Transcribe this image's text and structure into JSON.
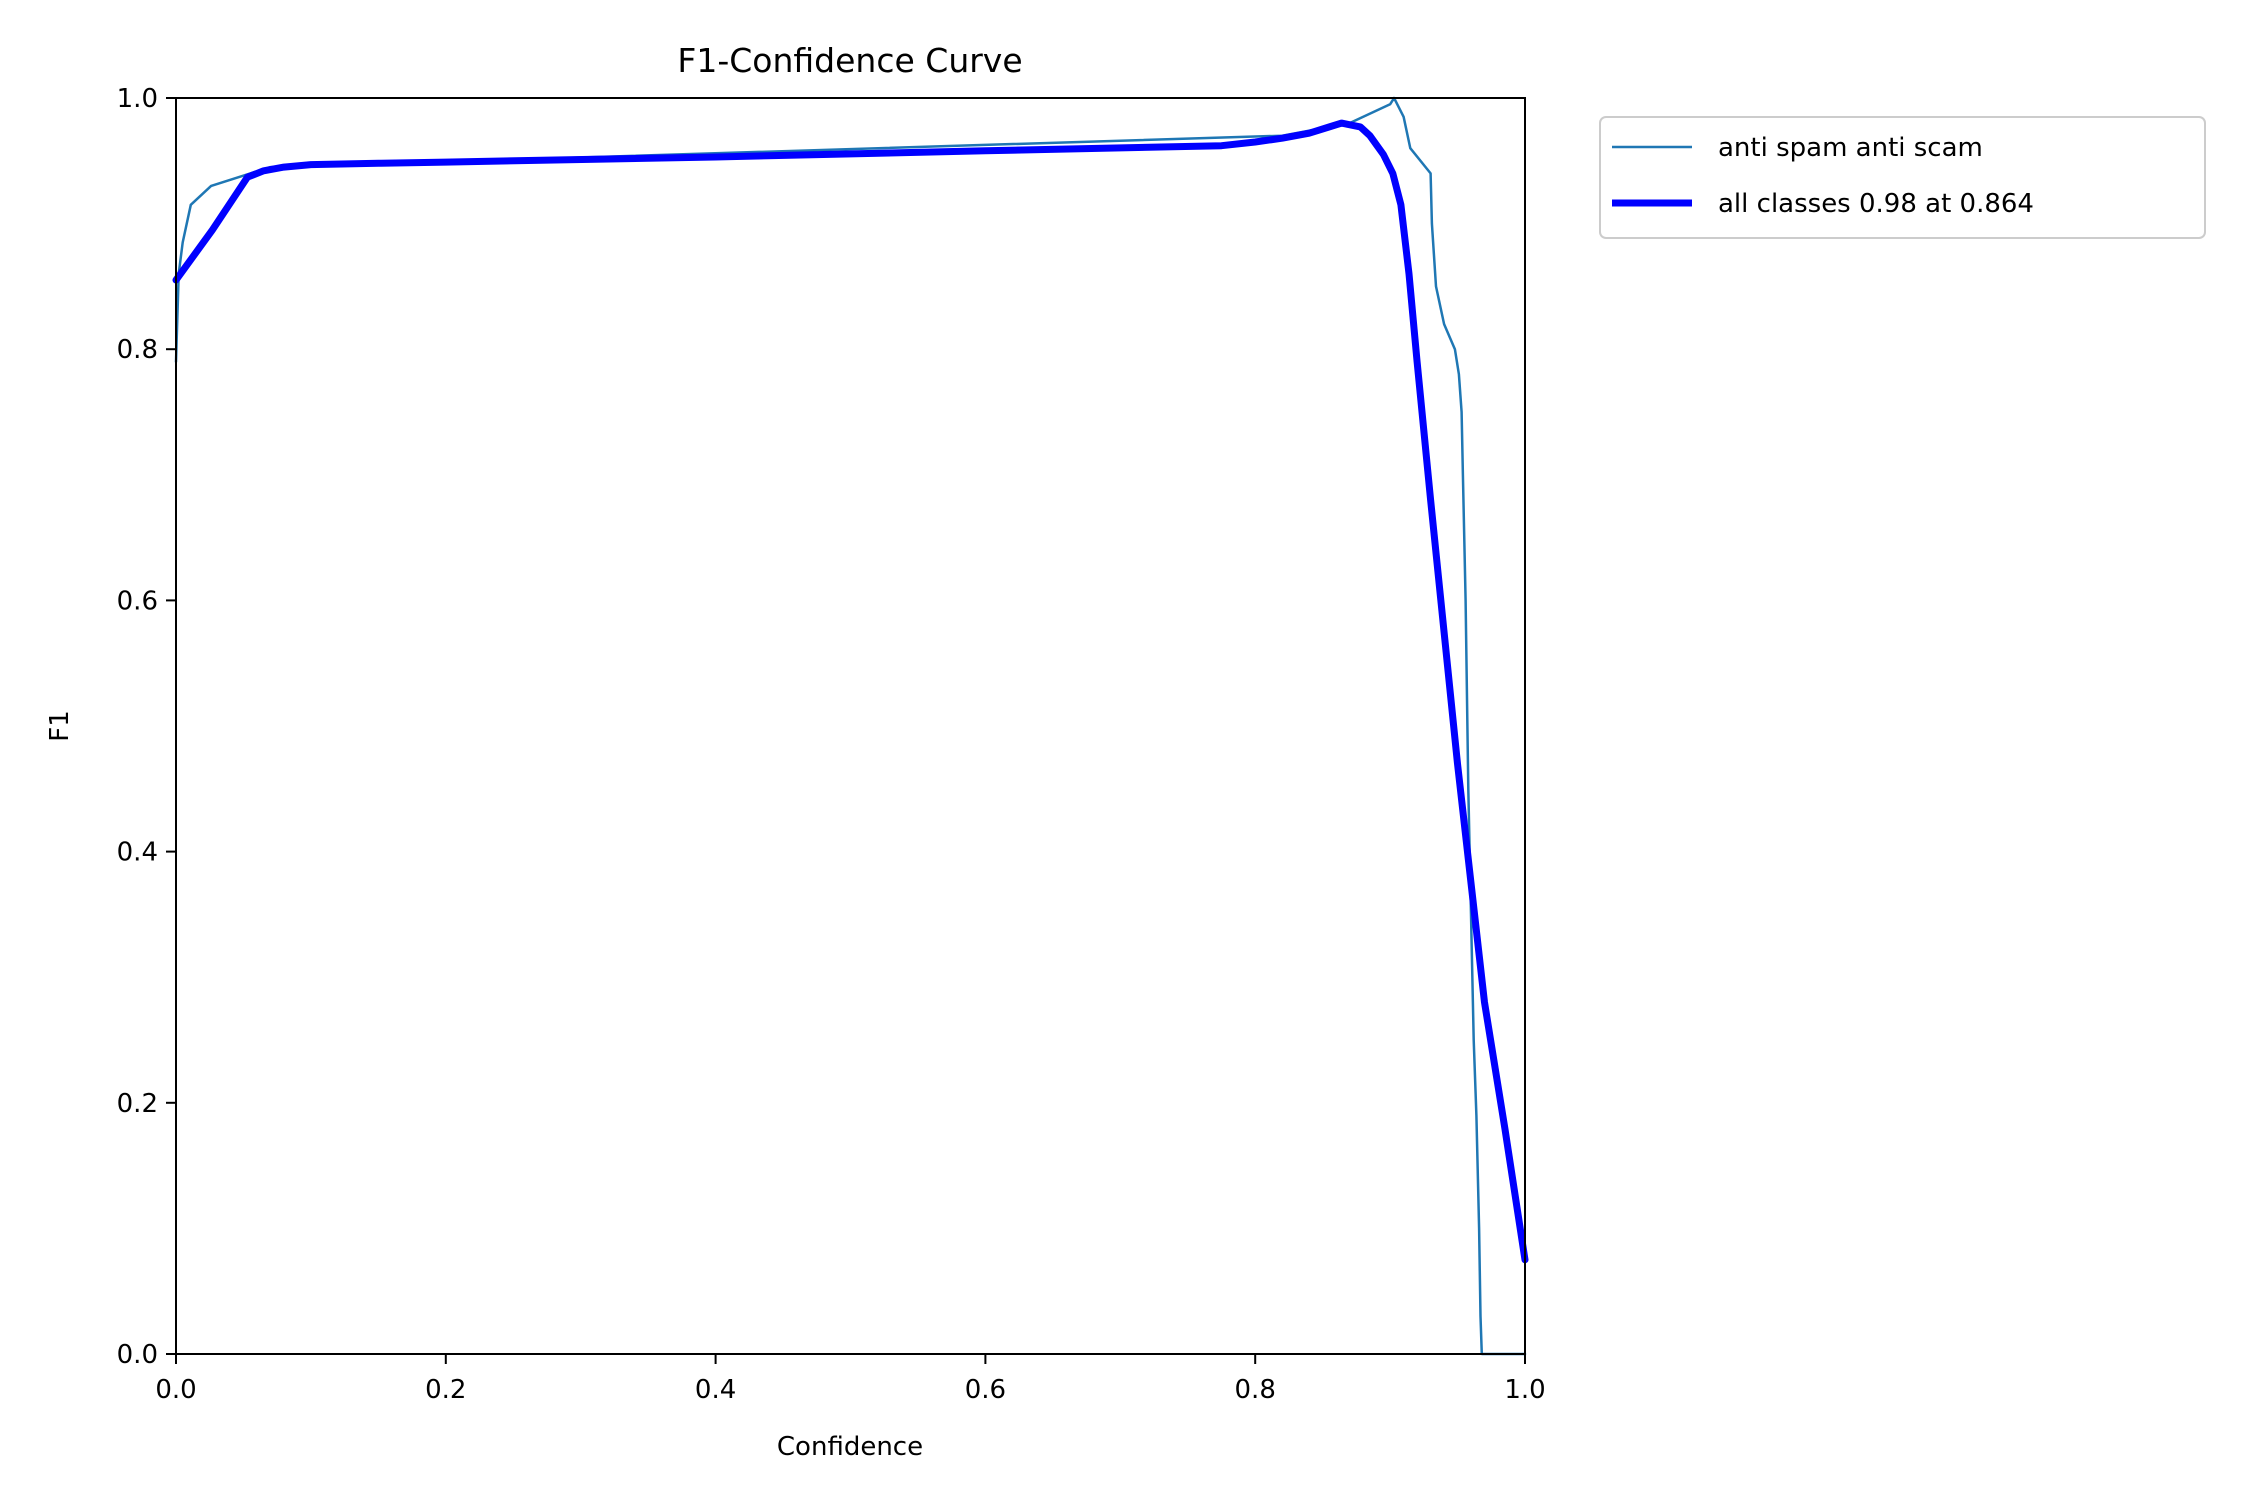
{
  "chart_data": {
    "type": "line",
    "title": "F1-Confidence Curve",
    "xlabel": "Confidence",
    "ylabel": "F1",
    "xlim": [
      0,
      1
    ],
    "ylim": [
      0,
      1
    ],
    "xticks": [
      "0.0",
      "0.2",
      "0.4",
      "0.6",
      "0.8",
      "1.0"
    ],
    "yticks": [
      "0.0",
      "0.2",
      "0.4",
      "0.6",
      "0.8",
      "1.0"
    ],
    "grid": false,
    "legend_position": "outside top-right",
    "series": [
      {
        "name": "anti spam anti scam",
        "color": "#1f77b4",
        "style": "thin",
        "x": [
          0.0,
          0.002,
          0.005,
          0.011,
          0.026,
          0.07,
          0.82,
          0.87,
          0.9,
          0.903,
          0.91,
          0.915,
          0.93,
          0.931,
          0.934,
          0.94,
          0.948,
          0.951,
          0.953,
          0.954,
          0.956,
          0.958,
          0.96,
          0.962,
          0.964,
          0.966,
          0.967,
          0.968,
          0.97,
          0.985,
          1.0
        ],
        "y": [
          0.79,
          0.86,
          0.885,
          0.915,
          0.93,
          0.945,
          0.97,
          0.98,
          0.995,
          1.0,
          0.985,
          0.96,
          0.94,
          0.9,
          0.85,
          0.82,
          0.8,
          0.78,
          0.75,
          0.7,
          0.6,
          0.45,
          0.35,
          0.25,
          0.19,
          0.1,
          0.03,
          0.0,
          0.0,
          0.0,
          0.0
        ]
      },
      {
        "name": "all classes 0.98 at 0.864",
        "color": "#0000ff",
        "style": "thick",
        "x": [
          0.0,
          0.027,
          0.053,
          0.065,
          0.08,
          0.1,
          0.15,
          0.2,
          0.4,
          0.6,
          0.775,
          0.8,
          0.82,
          0.84,
          0.855,
          0.864,
          0.878,
          0.885,
          0.895,
          0.902,
          0.908,
          0.914,
          0.92,
          0.93,
          0.95,
          0.97,
          0.985,
          1.0
        ],
        "y": [
          0.855,
          0.895,
          0.937,
          0.942,
          0.945,
          0.947,
          0.948,
          0.949,
          0.953,
          0.958,
          0.962,
          0.965,
          0.968,
          0.972,
          0.977,
          0.98,
          0.977,
          0.97,
          0.955,
          0.94,
          0.915,
          0.86,
          0.79,
          0.68,
          0.47,
          0.28,
          0.18,
          0.075
        ]
      }
    ]
  }
}
